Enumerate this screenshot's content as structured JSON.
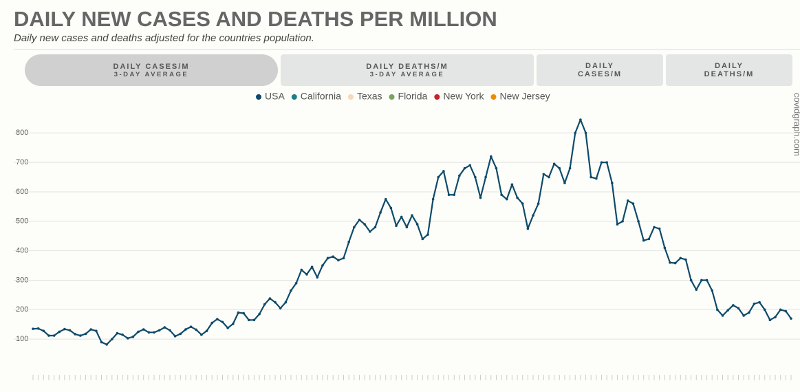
{
  "header": {
    "title": "DAILY NEW CASES AND DEATHS PER MILLION",
    "subtitle": "Daily new cases and deaths adjusted for the countries population."
  },
  "tabs": [
    {
      "label": "DAILY CASES/M",
      "sub": "3-DAY AVERAGE"
    },
    {
      "label": "DAILY DEATHS/M",
      "sub": "3-DAY AVERAGE"
    },
    {
      "label": "DAILY CASES/M"
    },
    {
      "label": "DAILY DEATHS/M"
    }
  ],
  "watermark": "covidgraph.com",
  "chart_data": {
    "type": "line",
    "ylim": [
      0,
      880
    ],
    "yticks": [
      100,
      200,
      300,
      400,
      500,
      600,
      700,
      800
    ],
    "grid": true,
    "series": [
      {
        "name": "USA",
        "color": "#0d4a6b",
        "values": [
          135,
          136,
          128,
          112,
          112,
          125,
          134,
          130,
          117,
          112,
          118,
          133,
          128,
          90,
          82,
          100,
          120,
          115,
          103,
          108,
          125,
          133,
          123,
          123,
          130,
          140,
          130,
          110,
          118,
          133,
          142,
          132,
          115,
          128,
          155,
          168,
          158,
          138,
          152,
          190,
          188,
          165,
          165,
          185,
          218,
          238,
          225,
          205,
          225,
          265,
          290,
          335,
          320,
          345,
          310,
          350,
          375,
          380,
          368,
          375,
          430,
          480,
          505,
          490,
          465,
          480,
          530,
          575,
          545,
          485,
          515,
          480,
          520,
          490,
          440,
          455,
          575,
          650,
          670,
          590,
          590,
          655,
          680,
          690,
          650,
          580,
          650,
          720,
          680,
          590,
          575,
          625,
          580,
          560,
          475,
          520,
          560,
          660,
          650,
          695,
          680,
          630,
          680,
          800,
          845,
          800,
          650,
          645,
          700,
          700,
          630,
          490,
          500,
          570,
          560,
          500,
          435,
          440,
          480,
          475,
          410,
          360,
          358,
          375,
          370,
          300,
          268,
          300,
          300,
          265,
          200,
          180,
          198,
          215,
          205,
          180,
          190,
          220,
          225,
          200,
          165,
          175,
          200,
          195,
          170
        ]
      },
      {
        "name": "California",
        "color": "#1a7f8a"
      },
      {
        "name": "Texas",
        "color": "#f9d7b9"
      },
      {
        "name": "Florida",
        "color": "#7aa35c"
      },
      {
        "name": "New York",
        "color": "#c8232b"
      },
      {
        "name": "New Jersey",
        "color": "#f08c00"
      }
    ]
  }
}
